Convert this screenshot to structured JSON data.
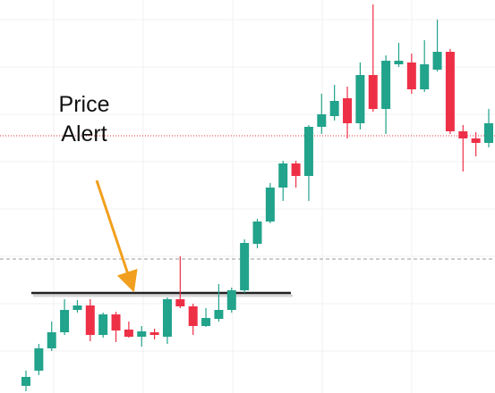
{
  "chart_data": {
    "type": "candlestick",
    "annotation": [
      "Price",
      "Alert"
    ],
    "ylim": [
      0,
      440
    ],
    "up_color": "#22a38b",
    "down_color": "#ee3047",
    "open": [
      8,
      25,
      50,
      68,
      93,
      98,
      65,
      88,
      71,
      63,
      68,
      63,
      105,
      97,
      75,
      83,
      93,
      115,
      167,
      192,
      230,
      257,
      243,
      298,
      310,
      330,
      302,
      356,
      318,
      368,
      370,
      340,
      362,
      382,
      293,
      285,
      280
    ],
    "close": [
      18,
      50,
      68,
      93,
      98,
      65,
      88,
      70,
      63,
      69,
      65,
      105,
      97,
      75,
      84,
      93,
      115,
      168,
      192,
      230,
      257,
      243,
      298,
      312,
      327,
      302,
      356,
      318,
      372,
      372,
      340,
      368,
      382,
      293,
      285,
      280,
      302
    ],
    "high": [
      25,
      55,
      80,
      105,
      104,
      105,
      90,
      91,
      80,
      75,
      72,
      107,
      153,
      100,
      95,
      122,
      118,
      172,
      195,
      235,
      260,
      260,
      300,
      335,
      345,
      343,
      370,
      435,
      378,
      392,
      380,
      395,
      418,
      385,
      300,
      292,
      318
    ],
    "low": [
      2,
      20,
      47,
      65,
      90,
      58,
      62,
      57,
      62,
      52,
      60,
      55,
      95,
      65,
      74,
      80,
      90,
      112,
      162,
      190,
      215,
      230,
      215,
      290,
      305,
      285,
      295,
      315,
      290,
      365,
      335,
      337,
      360,
      290,
      248,
      265,
      275
    ],
    "levels": [
      {
        "name": "price",
        "value": 288,
        "color": "#e0303a",
        "style": "dotted"
      },
      {
        "name": "reference",
        "value": 150,
        "color": "#9a9a9a",
        "style": "dashed"
      },
      {
        "name": "alert",
        "value": 112,
        "color": "#222222",
        "style": "solid"
      }
    ]
  }
}
